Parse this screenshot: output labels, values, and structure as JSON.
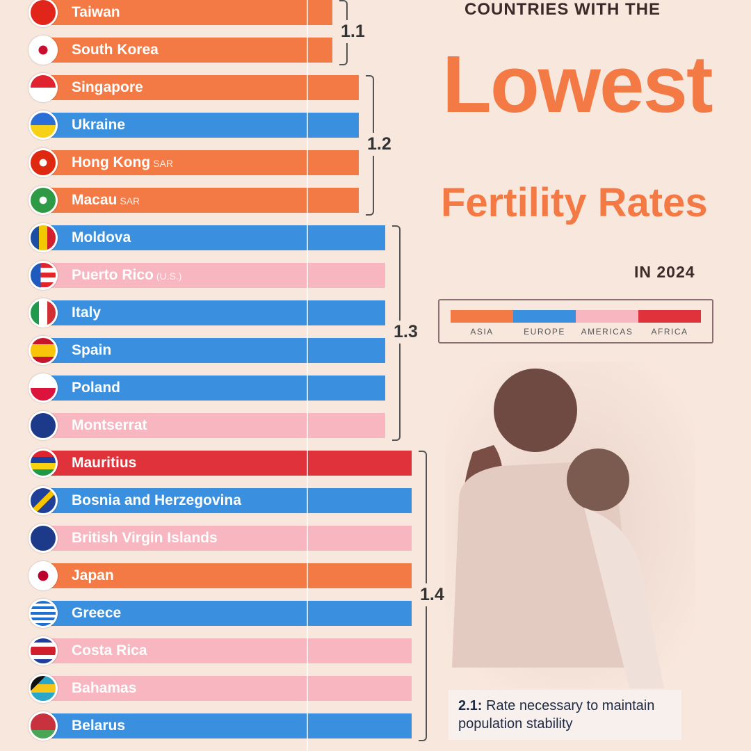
{
  "title": {
    "top": "COUNTRIES WITH THE",
    "big": "Lowest",
    "mid": "Fertility Rates",
    "year": "IN 2024"
  },
  "legend": [
    {
      "label": "ASIA",
      "color": "#f47a45"
    },
    {
      "label": "EUROPE",
      "color": "#3a8fde"
    },
    {
      "label": "AMERICAS",
      "color": "#f7b6c0"
    },
    {
      "label": "AFRICA",
      "color": "#e0323a"
    }
  ],
  "note": {
    "value": "2.1:",
    "text": "Rate necessary to maintain population stability"
  },
  "chart_data": {
    "type": "bar",
    "orientation": "horizontal",
    "title": "Countries with the Lowest Fertility Rates in 2024",
    "categories": [
      "Taiwan",
      "South Korea",
      "Singapore",
      "Ukraine",
      "Hong Kong",
      "Macau",
      "Moldova",
      "Puerto Rico",
      "Italy",
      "Spain",
      "Poland",
      "Montserrat",
      "Mauritius",
      "Bosnia and Herzegovina",
      "British Virgin Islands",
      "Japan",
      "Greece",
      "Costa Rica",
      "Bahamas",
      "Belarus"
    ],
    "suffixes": [
      "",
      "",
      "",
      "",
      "SAR",
      "SAR",
      "",
      "(U.S.)",
      "",
      "",
      "",
      "",
      "",
      "",
      "",
      "",
      "",
      "",
      "",
      ""
    ],
    "regions": [
      "Asia",
      "Asia",
      "Asia",
      "Europe",
      "Asia",
      "Asia",
      "Europe",
      "Americas",
      "Europe",
      "Europe",
      "Europe",
      "Americas",
      "Africa",
      "Europe",
      "Americas",
      "Asia",
      "Europe",
      "Americas",
      "Americas",
      "Europe"
    ],
    "values": [
      1.1,
      1.1,
      1.2,
      1.2,
      1.2,
      1.2,
      1.3,
      1.3,
      1.3,
      1.3,
      1.3,
      1.3,
      1.4,
      1.4,
      1.4,
      1.4,
      1.4,
      1.4,
      1.4,
      1.4
    ],
    "group_labels": [
      "1.1",
      "1.2",
      "1.3",
      "1.4"
    ],
    "region_colors": {
      "Asia": "#f47a45",
      "Europe": "#3a8fde",
      "Americas": "#f7b6c0",
      "Africa": "#e0323a"
    }
  }
}
